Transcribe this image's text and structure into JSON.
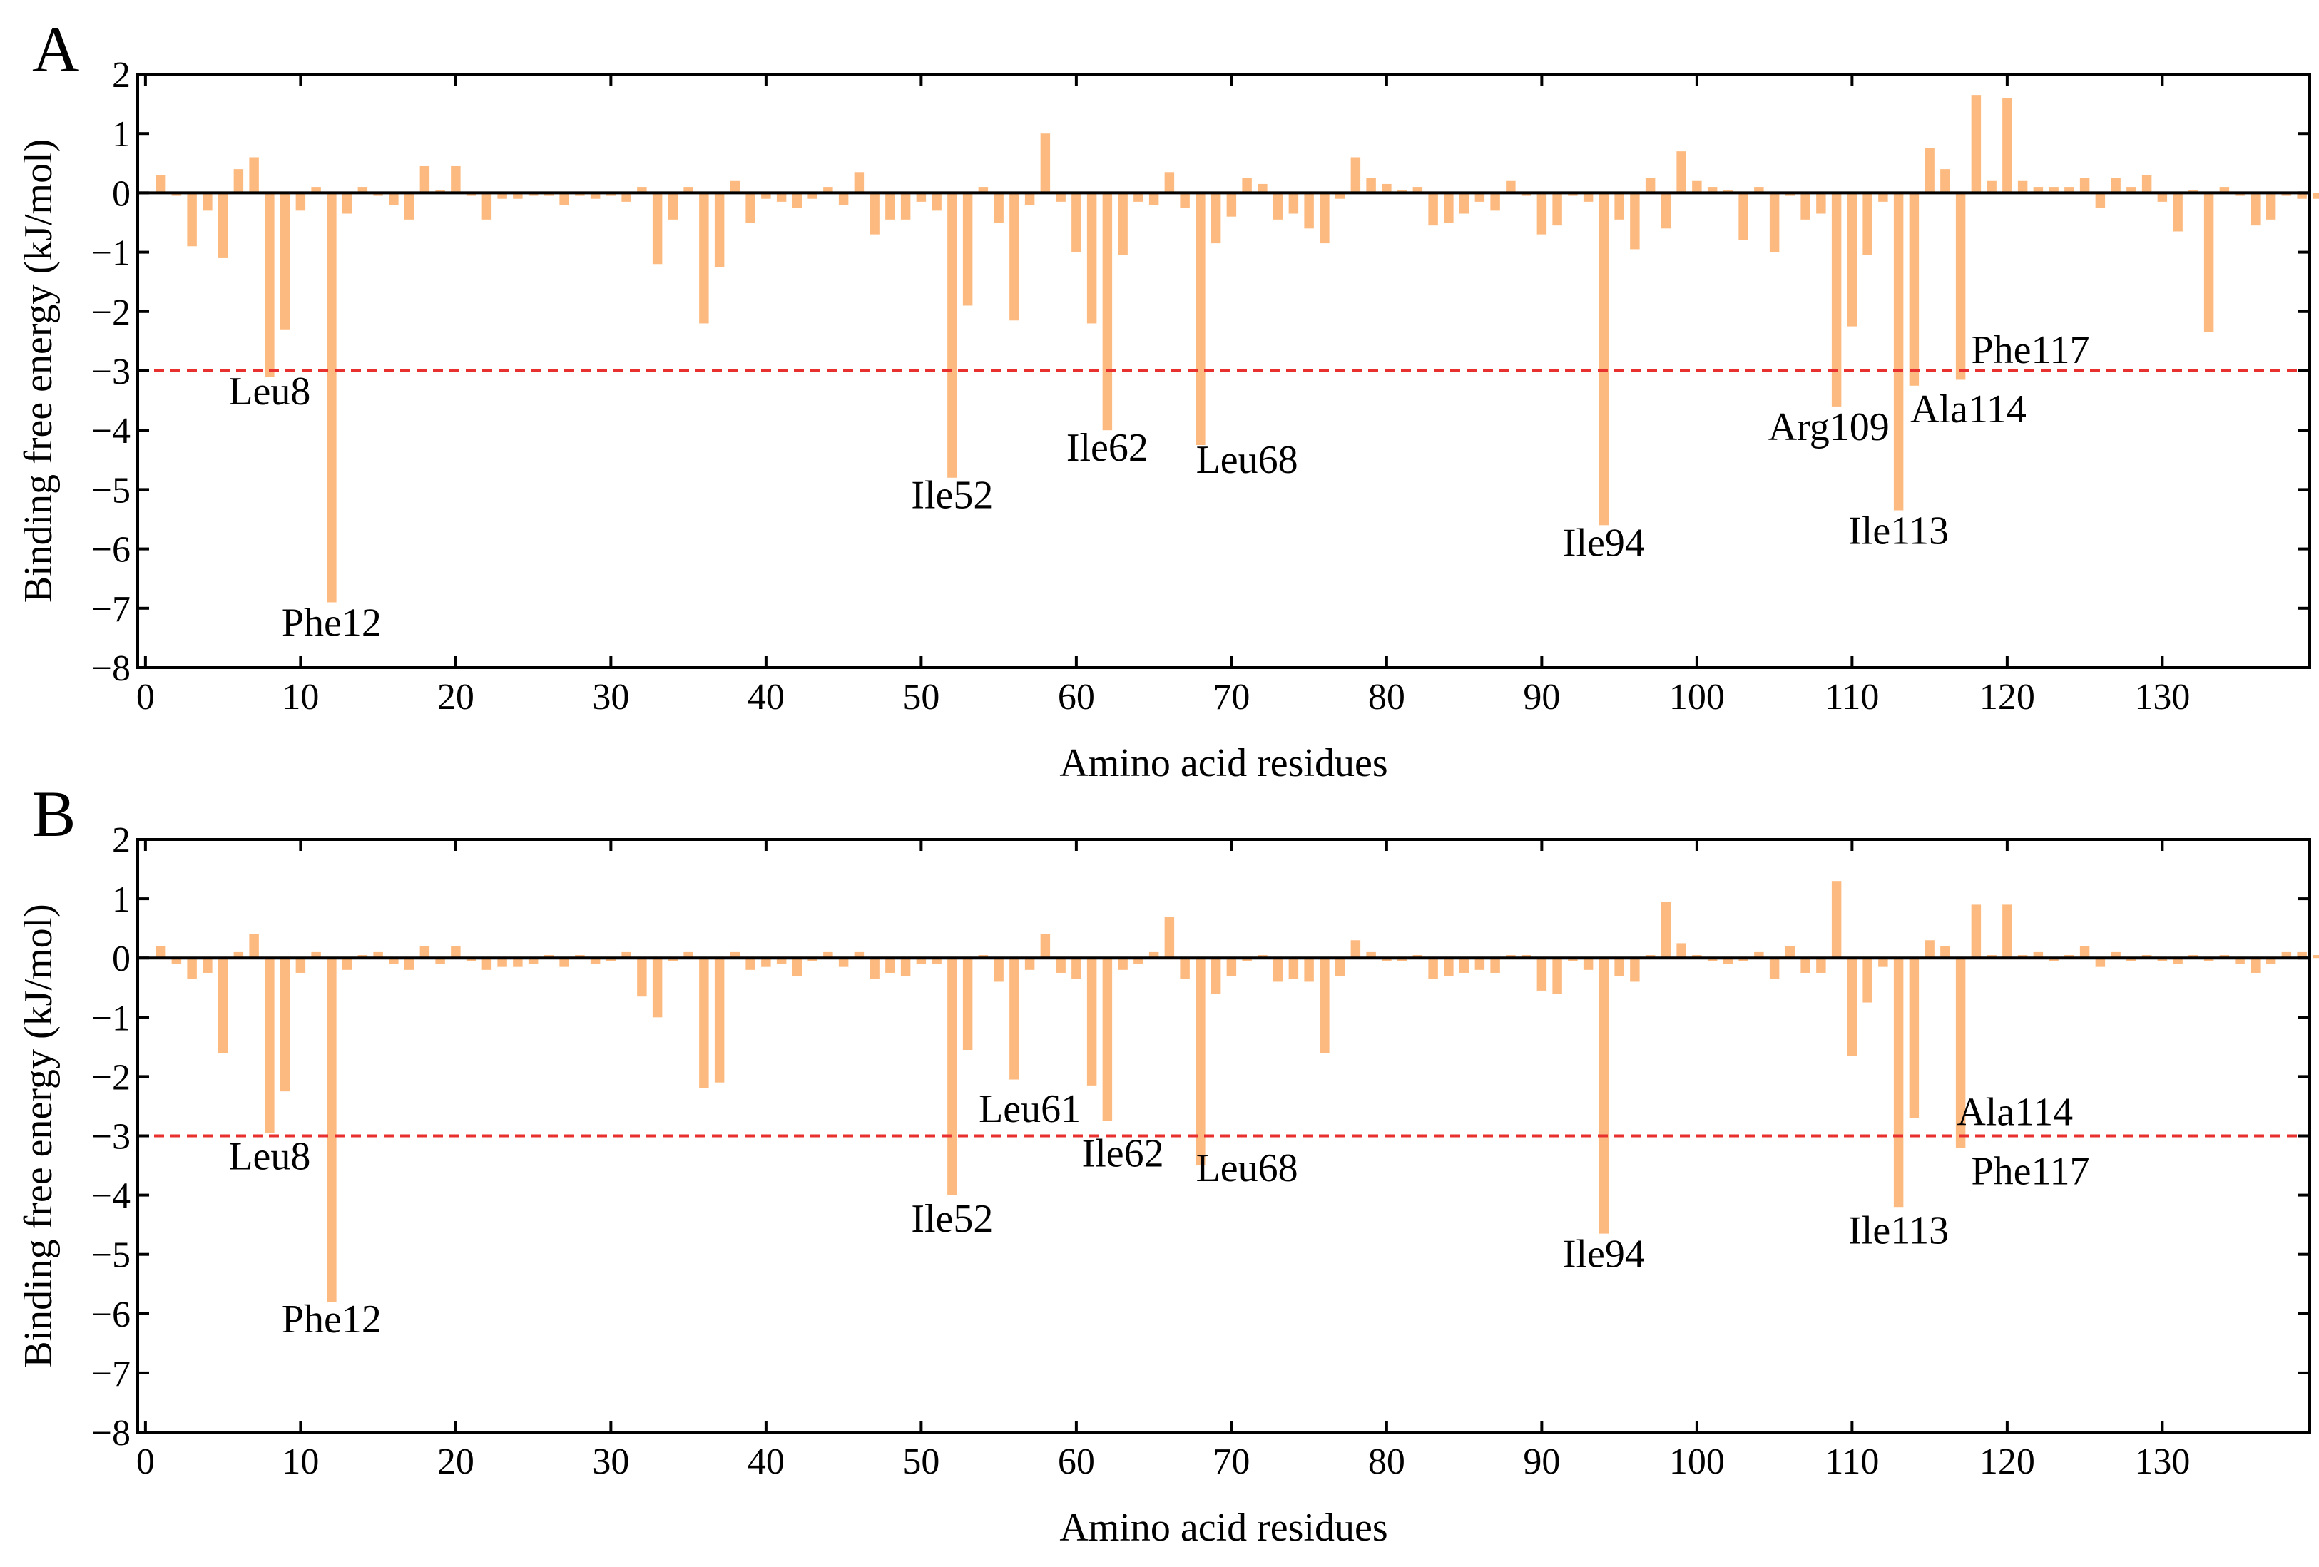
{
  "colors": {
    "bar": "#FDBA80",
    "threshold": "#E8312F",
    "axis": "#000000",
    "zero_line": "#000000"
  },
  "chart_data": [
    {
      "type": "bar",
      "panel_label": "A",
      "xlabel": "Amino acid residues",
      "ylabel": "Binding free energy (kJ/mol)",
      "xlim": [
        -0.5,
        139.5
      ],
      "ylim": [
        -8,
        2
      ],
      "xticks": [
        0,
        10,
        20,
        30,
        40,
        50,
        60,
        70,
        80,
        90,
        100,
        110,
        120,
        130
      ],
      "yticks": [
        -8,
        -7,
        -6,
        -5,
        -4,
        -3,
        -2,
        -1,
        0,
        1,
        2
      ],
      "ytick_labels": [
        "−8",
        "−7",
        "−6",
        "−5",
        "−4",
        "−3",
        "−2",
        "−1",
        "0",
        "1",
        "2"
      ],
      "threshold": -3,
      "residue_start": 1,
      "values": [
        0.3,
        -0.05,
        -0.9,
        -0.3,
        -1.1,
        0.4,
        0.6,
        -3.1,
        -2.3,
        -0.3,
        0.1,
        -6.9,
        -0.35,
        0.1,
        -0.05,
        -0.2,
        -0.45,
        0.45,
        0.05,
        0.45,
        -0.05,
        -0.45,
        -0.1,
        -0.1,
        -0.05,
        -0.05,
        -0.2,
        -0.05,
        -0.1,
        -0.05,
        -0.15,
        0.1,
        -1.2,
        -0.45,
        0.1,
        -2.2,
        -1.25,
        0.2,
        -0.5,
        -0.1,
        -0.15,
        -0.25,
        -0.1,
        0.1,
        -0.2,
        0.35,
        -0.7,
        -0.45,
        -0.45,
        -0.15,
        -0.3,
        -4.8,
        -1.9,
        0.1,
        -0.5,
        -2.15,
        -0.2,
        1.0,
        -0.15,
        -1.0,
        -2.2,
        -4.0,
        -1.05,
        -0.15,
        -0.2,
        0.35,
        -0.25,
        -4.25,
        -0.85,
        -0.4,
        0.25,
        0.15,
        -0.45,
        -0.35,
        -0.6,
        -0.85,
        -0.1,
        0.6,
        0.25,
        0.15,
        0.05,
        0.1,
        -0.55,
        -0.5,
        -0.35,
        -0.15,
        -0.3,
        0.2,
        -0.05,
        -0.7,
        -0.55,
        -0.05,
        -0.15,
        -5.6,
        -0.45,
        -0.95,
        0.25,
        -0.6,
        0.7,
        0.2,
        0.1,
        0.05,
        -0.8,
        0.1,
        -1.0,
        -0.05,
        -0.45,
        -0.35,
        -3.6,
        -2.25,
        -1.05,
        -0.15,
        -5.35,
        -3.25,
        0.75,
        0.4,
        -3.15,
        1.65,
        0.2,
        1.6,
        0.2,
        0.1,
        0.1,
        0.1,
        0.25,
        -0.25,
        0.25,
        0.1,
        0.3,
        -0.15,
        -0.65,
        0.05,
        -2.35,
        0.1,
        -0.05,
        -0.55,
        -0.45,
        -0.05,
        -0.1,
        -0.1
      ],
      "annotations": [
        {
          "text": "Leu8",
          "residue": 8,
          "value": -3.35
        },
        {
          "text": "Phe12",
          "residue": 12,
          "value": -7.25
        },
        {
          "text": "Ile52",
          "residue": 52,
          "value": -5.1
        },
        {
          "text": "Ile62",
          "residue": 62,
          "value": -4.3
        },
        {
          "text": "Leu68",
          "residue": 71,
          "value": -4.5
        },
        {
          "text": "Ile94",
          "residue": 94,
          "value": -5.9
        },
        {
          "text": "Arg109",
          "residue": 108.5,
          "value": -3.95
        },
        {
          "text": "Ala114",
          "residue": 117.5,
          "value": -3.65
        },
        {
          "text": "Phe117",
          "residue": 121.5,
          "value": -2.65
        },
        {
          "text": "Ile113",
          "residue": 113,
          "value": -5.7
        }
      ]
    },
    {
      "type": "bar",
      "panel_label": "B",
      "xlabel": "Amino acid residues",
      "ylabel": "Binding free energy (kJ/mol)",
      "xlim": [
        -0.5,
        139.5
      ],
      "ylim": [
        -8,
        2
      ],
      "xticks": [
        0,
        10,
        20,
        30,
        40,
        50,
        60,
        70,
        80,
        90,
        100,
        110,
        120,
        130
      ],
      "yticks": [
        -8,
        -7,
        -6,
        -5,
        -4,
        -3,
        -2,
        -1,
        0,
        1,
        2
      ],
      "ytick_labels": [
        "−8",
        "−7",
        "−6",
        "−5",
        "−4",
        "−3",
        "−2",
        "−1",
        "0",
        "1",
        "2"
      ],
      "threshold": -3,
      "residue_start": 1,
      "values": [
        0.2,
        -0.1,
        -0.35,
        -0.25,
        -1.6,
        0.1,
        0.4,
        -2.95,
        -2.25,
        -0.25,
        0.1,
        -5.8,
        -0.2,
        0.05,
        0.1,
        -0.1,
        -0.2,
        0.2,
        -0.1,
        0.2,
        -0.05,
        -0.2,
        -0.15,
        -0.15,
        -0.1,
        0.05,
        -0.15,
        0.05,
        -0.1,
        -0.05,
        0.1,
        -0.65,
        -1.0,
        -0.05,
        0.1,
        -2.2,
        -2.1,
        0.1,
        -0.2,
        -0.15,
        -0.1,
        -0.3,
        -0.05,
        0.1,
        -0.15,
        0.1,
        -0.35,
        -0.25,
        -0.3,
        -0.1,
        -0.1,
        -4.0,
        -1.55,
        0.05,
        -0.4,
        -2.05,
        -0.2,
        0.4,
        -0.25,
        -0.35,
        -2.15,
        -2.75,
        -0.2,
        -0.1,
        0.1,
        0.7,
        -0.35,
        -3.5,
        -0.6,
        -0.3,
        -0.05,
        0.05,
        -0.4,
        -0.35,
        -0.4,
        -1.6,
        -0.3,
        0.3,
        0.1,
        -0.05,
        -0.05,
        0.05,
        -0.35,
        -0.3,
        -0.25,
        -0.2,
        -0.25,
        0.05,
        0.05,
        -0.55,
        -0.6,
        -0.05,
        -0.2,
        -4.65,
        -0.3,
        -0.4,
        0.05,
        0.95,
        0.25,
        0.05,
        -0.05,
        -0.1,
        -0.05,
        0.1,
        -0.35,
        0.2,
        -0.25,
        -0.25,
        1.3,
        -1.65,
        -0.75,
        -0.15,
        -4.2,
        -2.7,
        0.3,
        0.2,
        -3.2,
        0.9,
        0.05,
        0.9,
        0.05,
        0.1,
        -0.05,
        0.05,
        0.2,
        -0.15,
        0.1,
        -0.05,
        0.05,
        -0.05,
        -0.1,
        0.05,
        -0.05,
        0.05,
        -0.1,
        -0.25,
        -0.1,
        0.1,
        0.1,
        0.05
      ],
      "annotations": [
        {
          "text": "Leu8",
          "residue": 8,
          "value": -3.35
        },
        {
          "text": "Phe12",
          "residue": 12,
          "value": -6.1
        },
        {
          "text": "Ile52",
          "residue": 52,
          "value": -4.4
        },
        {
          "text": "Leu61",
          "residue": 57,
          "value": -2.55
        },
        {
          "text": "Ile62",
          "residue": 63,
          "value": -3.3
        },
        {
          "text": "Leu68",
          "residue": 71,
          "value": -3.55
        },
        {
          "text": "Ile94",
          "residue": 94,
          "value": -5.0
        },
        {
          "text": "Ala114",
          "residue": 120.5,
          "value": -2.6
        },
        {
          "text": "Phe117",
          "residue": 121.5,
          "value": -3.6
        },
        {
          "text": "Ile113",
          "residue": 113,
          "value": -4.6
        }
      ]
    }
  ]
}
